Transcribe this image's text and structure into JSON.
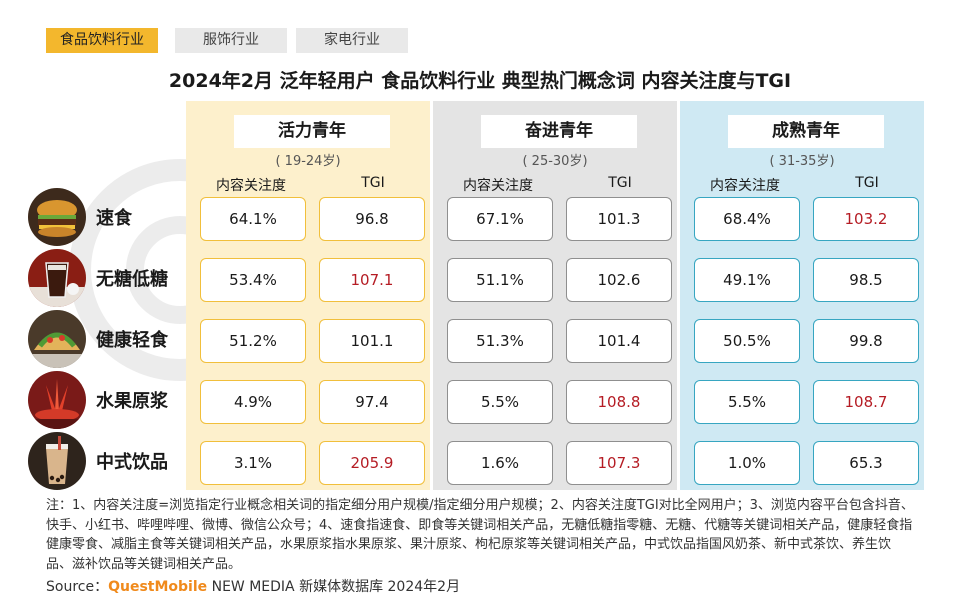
{
  "tabs": [
    {
      "label": "食品饮料行业",
      "active": true
    },
    {
      "label": "服饰行业",
      "active": false
    },
    {
      "label": "家电行业",
      "active": false
    }
  ],
  "title": "2024年2月 泛年轻用户 食品饮料行业 典型热门概念词 内容关注度与TGI",
  "segments": [
    {
      "name": "活力青年",
      "age": "( 19-24岁)",
      "col1": "内容关注度",
      "col2": "TGI",
      "accent": "#f1bf3b",
      "bg": "#fdf0cc"
    },
    {
      "name": "奋进青年",
      "age": "( 25-30岁)",
      "col1": "内容关注度",
      "col2": "TGI",
      "accent": "#8f8f8f",
      "bg": "#e4e4e4"
    },
    {
      "name": "成熟青年",
      "age": "( 31-35岁)",
      "col1": "内容关注度",
      "col2": "TGI",
      "accent": "#37a6c1",
      "bg": "#cfe9f3"
    }
  ],
  "rows": [
    {
      "label": "速食",
      "icon": "burger-icon",
      "values": [
        {
          "attention": "64.1%",
          "tgi": "96.8",
          "hi": false
        },
        {
          "attention": "67.1%",
          "tgi": "101.3",
          "hi": false
        },
        {
          "attention": "68.4%",
          "tgi": "103.2",
          "hi": true
        }
      ]
    },
    {
      "label": "无糖低糖",
      "icon": "cola-drink-icon",
      "values": [
        {
          "attention": "53.4%",
          "tgi": "107.1",
          "hi": true
        },
        {
          "attention": "51.1%",
          "tgi": "102.6",
          "hi": false
        },
        {
          "attention": "49.1%",
          "tgi": "98.5",
          "hi": false
        }
      ]
    },
    {
      "label": "健康轻食",
      "icon": "taco-icon",
      "values": [
        {
          "attention": "51.2%",
          "tgi": "101.1",
          "hi": false
        },
        {
          "attention": "51.3%",
          "tgi": "101.4",
          "hi": false
        },
        {
          "attention": "50.5%",
          "tgi": "99.8",
          "hi": false
        }
      ]
    },
    {
      "label": "水果原浆",
      "icon": "fruit-juice-icon",
      "values": [
        {
          "attention": "4.9%",
          "tgi": "97.4",
          "hi": false
        },
        {
          "attention": "5.5%",
          "tgi": "108.8",
          "hi": true
        },
        {
          "attention": "5.5%",
          "tgi": "108.7",
          "hi": true
        }
      ]
    },
    {
      "label": "中式饮品",
      "icon": "milk-tea-icon",
      "values": [
        {
          "attention": "3.1%",
          "tgi": "205.9",
          "hi": true
        },
        {
          "attention": "1.6%",
          "tgi": "107.3",
          "hi": true
        },
        {
          "attention": "1.0%",
          "tgi": "65.3",
          "hi": false
        }
      ]
    }
  ],
  "highlight_color": "#b51c24",
  "notes": "注：1、内容关注度=浏览指定行业概念相关词的指定细分用户规模/指定细分用户规模；2、内容关注度TGI对比全网用户；3、浏览内容平台包含抖音、快手、小红书、哔哩哔哩、微博、微信公众号；4、速食指速食、即食等关键词相关产品，无糖低糖指零糖、无糖、代糖等关键词相关产品，健康轻食指健康零食、减脂主食等关键词相关产品，水果原浆指水果原浆、果汁原浆、枸杞原浆等关键词相关产品，中式饮品指国风奶茶、新中式茶饮、养生饮品、滋补饮品等关键词相关产品。",
  "source": {
    "prefix": "Source：",
    "brand": "QuestMobile",
    "suffix": " NEW MEDIA  新媒体数据库 2024年2月"
  }
}
